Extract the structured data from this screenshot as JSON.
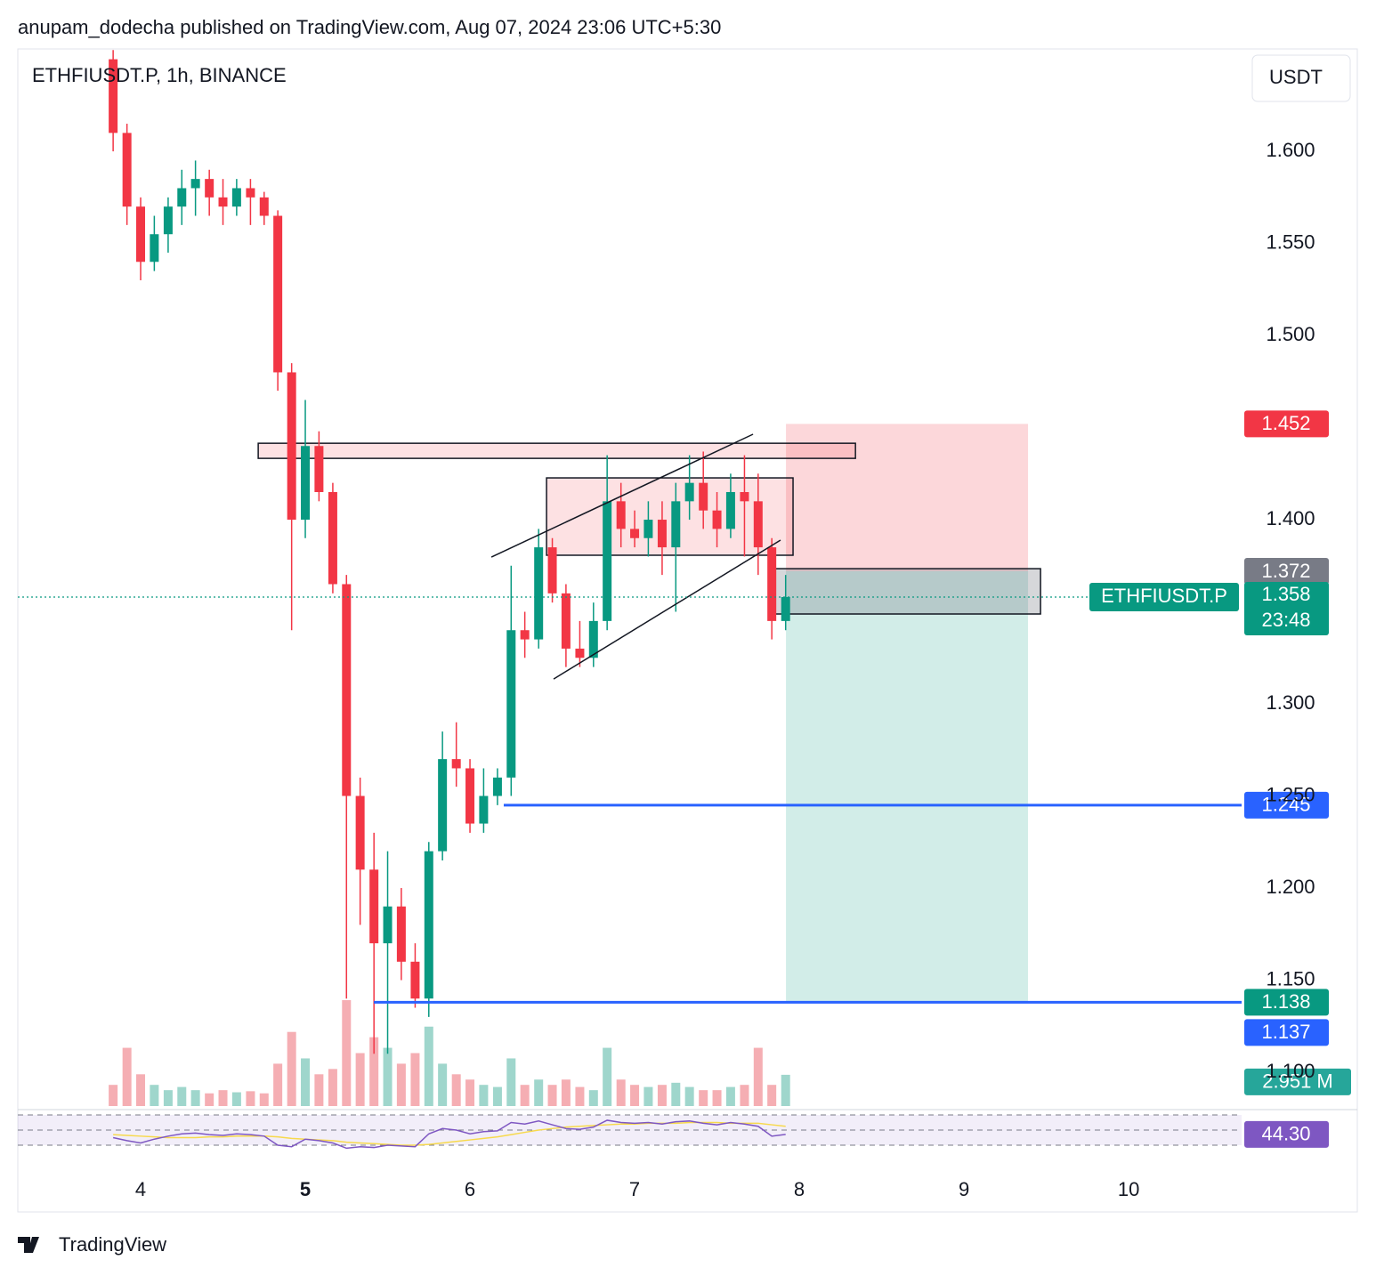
{
  "header": {
    "publisher": "anupam_dodecha published on TradingView.com, Aug 07, 2024 23:06 UTC+5:30"
  },
  "footer": {
    "brand": "TradingView"
  },
  "chart_data": {
    "type": "candlestick",
    "title": "ETHFIUSDT.P, 1h, BINANCE",
    "currency": "USDT",
    "x": [
      3.833,
      3.917,
      4.0,
      4.083,
      4.167,
      4.25,
      4.333,
      4.417,
      4.5,
      4.583,
      4.667,
      4.75,
      4.833,
      4.917,
      5.0,
      5.083,
      5.167,
      5.25,
      5.333,
      5.417,
      5.5,
      5.583,
      5.667,
      5.75,
      5.833,
      5.917,
      6.0,
      6.083,
      6.167,
      6.25,
      6.333,
      6.417,
      6.5,
      6.583,
      6.667,
      6.75,
      6.833,
      6.917,
      7.0,
      7.083,
      7.167,
      7.25,
      7.333,
      7.417,
      7.5,
      7.583,
      7.667,
      7.75,
      7.833,
      7.917
    ],
    "open": [
      1.65,
      1.61,
      1.57,
      1.54,
      1.555,
      1.57,
      1.58,
      1.585,
      1.575,
      1.57,
      1.58,
      1.575,
      1.565,
      1.48,
      1.4,
      1.44,
      1.415,
      1.365,
      1.25,
      1.21,
      1.17,
      1.19,
      1.16,
      1.14,
      1.22,
      1.27,
      1.265,
      1.235,
      1.25,
      1.26,
      1.34,
      1.335,
      1.385,
      1.36,
      1.33,
      1.325,
      1.345,
      1.41,
      1.395,
      1.39,
      1.4,
      1.385,
      1.41,
      1.42,
      1.405,
      1.395,
      1.415,
      1.41,
      1.385,
      1.345
    ],
    "high": [
      1.655,
      1.615,
      1.575,
      1.565,
      1.575,
      1.59,
      1.595,
      1.59,
      1.585,
      1.585,
      1.585,
      1.578,
      1.568,
      1.485,
      1.465,
      1.448,
      1.42,
      1.37,
      1.26,
      1.23,
      1.22,
      1.2,
      1.17,
      1.225,
      1.285,
      1.29,
      1.27,
      1.265,
      1.265,
      1.375,
      1.35,
      1.395,
      1.39,
      1.365,
      1.345,
      1.355,
      1.435,
      1.42,
      1.405,
      1.41,
      1.41,
      1.42,
      1.435,
      1.437,
      1.415,
      1.425,
      1.435,
      1.425,
      1.39,
      1.37
    ],
    "low": [
      1.6,
      1.56,
      1.53,
      1.535,
      1.545,
      1.56,
      1.565,
      1.565,
      1.56,
      1.565,
      1.56,
      1.56,
      1.47,
      1.34,
      1.39,
      1.41,
      1.36,
      1.14,
      1.18,
      1.11,
      1.11,
      1.15,
      1.135,
      1.13,
      1.215,
      1.255,
      1.23,
      1.23,
      1.245,
      1.25,
      1.325,
      1.33,
      1.355,
      1.32,
      1.32,
      1.32,
      1.34,
      1.385,
      1.385,
      1.38,
      1.37,
      1.35,
      1.4,
      1.395,
      1.385,
      1.39,
      1.38,
      1.37,
      1.335,
      1.34
    ],
    "close": [
      1.61,
      1.57,
      1.54,
      1.555,
      1.57,
      1.58,
      1.585,
      1.575,
      1.57,
      1.58,
      1.575,
      1.565,
      1.48,
      1.4,
      1.44,
      1.415,
      1.365,
      1.25,
      1.21,
      1.17,
      1.19,
      1.16,
      1.14,
      1.22,
      1.27,
      1.265,
      1.235,
      1.25,
      1.26,
      1.34,
      1.335,
      1.385,
      1.36,
      1.33,
      1.325,
      1.345,
      1.41,
      1.395,
      1.39,
      1.4,
      1.385,
      1.41,
      1.42,
      1.405,
      1.395,
      1.415,
      1.41,
      1.385,
      1.345,
      1.358
    ],
    "up_color": "#089981",
    "down_color": "#f23645",
    "xlim": [
      3.254,
      10.686
    ],
    "xticks": [
      4,
      5,
      6,
      7,
      8,
      9,
      10
    ],
    "bold_xtick": 5,
    "ylim": [
      1.0797,
      1.6556
    ],
    "yticks": [
      {
        "value": 1.1,
        "label": "1.100"
      },
      {
        "value": 1.15,
        "label": "1.150"
      },
      {
        "value": 1.2,
        "label": "1.200"
      },
      {
        "value": 1.25,
        "label": "1.250"
      },
      {
        "value": 1.3,
        "label": "1.300"
      },
      {
        "value": 1.4,
        "label": "1.400"
      },
      {
        "value": 1.5,
        "label": "1.500"
      },
      {
        "value": 1.55,
        "label": "1.550"
      },
      {
        "value": 1.6,
        "label": "1.600"
      }
    ],
    "volume": {
      "values": [
        2.0,
        5.5,
        3.0,
        2.0,
        1.5,
        1.8,
        1.5,
        1.2,
        1.5,
        1.3,
        1.4,
        1.2,
        4.0,
        7.0,
        4.5,
        3.0,
        3.5,
        10.0,
        5.0,
        6.5,
        5.5,
        4.0,
        5.0,
        7.5,
        4.0,
        3.0,
        2.5,
        2.0,
        1.8,
        4.5,
        2.0,
        2.5,
        2.0,
        2.5,
        1.8,
        1.5,
        5.5,
        2.5,
        2.0,
        1.8,
        2.0,
        2.2,
        1.8,
        1.5,
        1.5,
        1.8,
        2.0,
        5.5,
        2.0,
        2.951
      ],
      "value_labels": [
        null,
        null,
        null,
        null,
        null,
        null,
        null,
        null,
        null,
        null,
        null,
        null,
        null,
        null,
        null,
        null,
        null,
        null,
        null,
        null,
        null,
        null,
        null,
        null,
        null,
        null,
        null,
        null,
        null,
        null,
        null,
        null,
        null,
        null,
        null,
        null,
        null,
        null,
        null,
        null,
        null,
        null,
        null,
        null,
        null,
        null,
        null,
        null,
        null,
        "2.951 M"
      ],
      "ylim": [
        0,
        10
      ],
      "up_color": "#9fd6cc",
      "down_color": "#f5aeb3",
      "label_color": "#26a69a"
    },
    "rsi": {
      "values": [
        40,
        36,
        33,
        38,
        42,
        45,
        46,
        44,
        43,
        45,
        44,
        42,
        30,
        28,
        38,
        36,
        33,
        26,
        28,
        27,
        30,
        29,
        28,
        45,
        52,
        50,
        45,
        48,
        49,
        60,
        58,
        62,
        57,
        52,
        51,
        54,
        63,
        60,
        59,
        60,
        58,
        61,
        62,
        59,
        57,
        60,
        58,
        55,
        42,
        44.3
      ],
      "ma": [
        44,
        43,
        42,
        41,
        40,
        40,
        40,
        41,
        41,
        42,
        42,
        42,
        41,
        39,
        38,
        37,
        36,
        34,
        33,
        32,
        31,
        30,
        30,
        31,
        33,
        35,
        37,
        39,
        41,
        44,
        47,
        50,
        52,
        54,
        55,
        56,
        57,
        58,
        58,
        59,
        59,
        59,
        60,
        60,
        60,
        59,
        59,
        59,
        57,
        55
      ],
      "ylim": [
        20.6,
        75.9
      ],
      "levels": [
        30,
        50,
        70
      ],
      "color": "#7e57c2",
      "ma_color": "#f7d94c",
      "value_label": {
        "value": 44.3,
        "label": "44.30"
      }
    },
    "last_price": {
      "symbol": "ETHFIUSDT.P",
      "value": 1.358,
      "countdown": "23:48",
      "color": "#089981"
    },
    "price_labels": [
      {
        "value": 1.452,
        "color": "#f23645"
      },
      {
        "value": 1.372,
        "color": "#787b86"
      },
      {
        "value": 1.245,
        "color": "#2962ff"
      },
      {
        "value": 1.138,
        "color": "#089981"
      },
      {
        "value": 1.137,
        "color": "#2962ff"
      }
    ],
    "zones": [
      {
        "x": [
          4.714,
          8.341
        ],
        "price": [
          1.4415,
          1.4333
        ],
        "color": "rgba(242,54,69,0.15)"
      },
      {
        "x": [
          6.465,
          7.962
        ],
        "price": [
          1.4227,
          1.3807
        ],
        "color": "rgba(242,54,69,0.15)"
      },
      {
        "x": [
          7.843,
          9.465
        ],
        "price": [
          1.3734,
          1.3488
        ],
        "color": "rgba(120,123,134,0.3)"
      }
    ],
    "trendlines": [
      {
        "x": [
          6.13,
          7.719
        ],
        "price": [
          1.3797,
          1.4464
        ]
      },
      {
        "x": [
          6.508,
          7.886
        ],
        "price": [
          1.3135,
          1.3889
        ]
      }
    ],
    "hlines": [
      {
        "x": 6.205,
        "value": 1.245,
        "color": "#2962ff"
      },
      {
        "x": 5.416,
        "value": 1.138,
        "color": "#2962ff"
      }
    ],
    "position": {
      "x": [
        7.919,
        9.389
      ],
      "entry": 1.372,
      "stop": 1.452,
      "target": 1.138
    }
  }
}
